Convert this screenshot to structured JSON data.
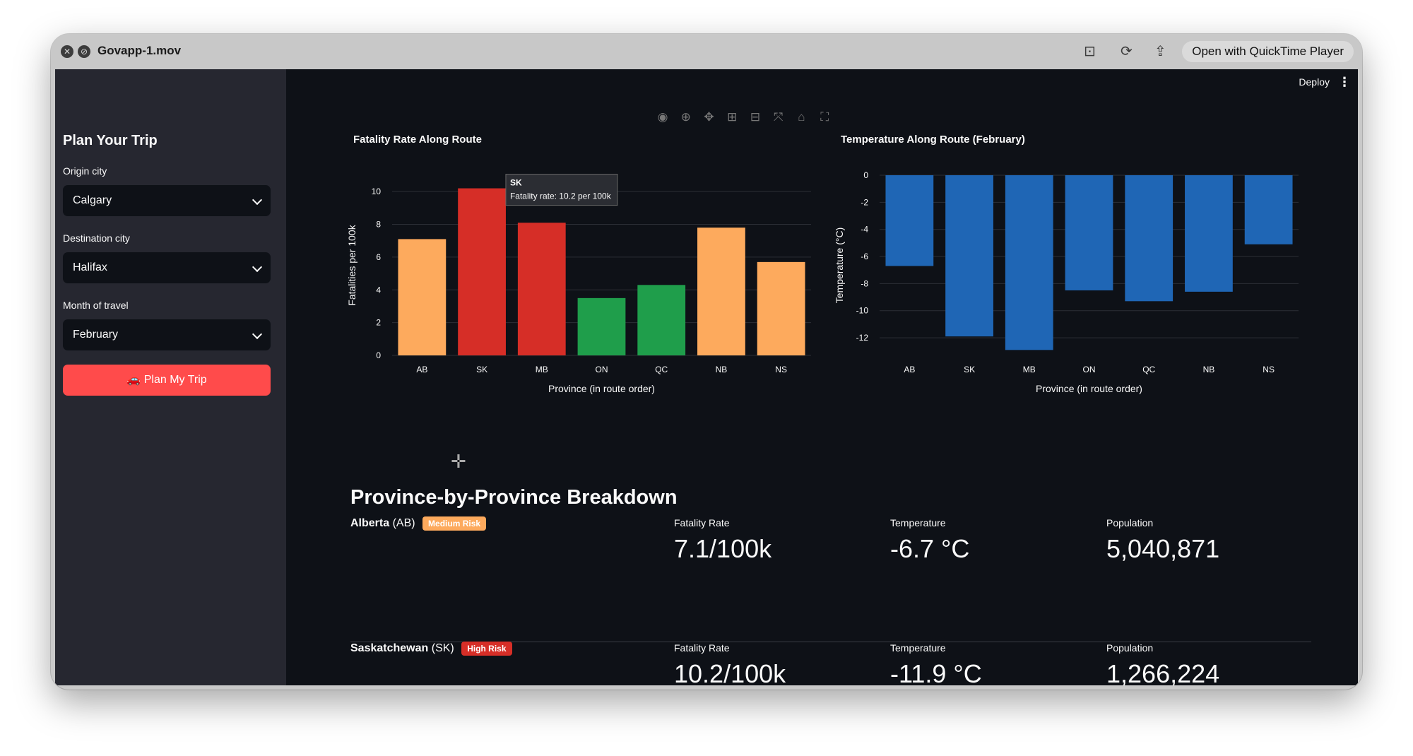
{
  "window": {
    "title": "Govapp-1.mov",
    "open_with": "Open with QuickTime Player"
  },
  "header": {
    "deploy": "Deploy",
    "menu_icon": "kebab-icon"
  },
  "sidebar": {
    "title": "Plan Your Trip",
    "origin": {
      "label": "Origin city",
      "value": "Calgary"
    },
    "destination": {
      "label": "Destination city",
      "value": "Halifax"
    },
    "month": {
      "label": "Month of travel",
      "value": "February"
    },
    "button": "🚗 Plan My Trip"
  },
  "chart_data": [
    {
      "type": "bar",
      "title": "Fatality Rate Along Route",
      "xlabel": "Province (in route order)",
      "ylabel": "Fatalities per 100k",
      "categories": [
        "AB",
        "SK",
        "MB",
        "ON",
        "QC",
        "NB",
        "NS"
      ],
      "values": [
        7.1,
        10.2,
        8.1,
        3.5,
        4.3,
        7.8,
        5.7
      ],
      "colors": [
        "#fdaa5d",
        "#d62e27",
        "#d62e27",
        "#1f9e4b",
        "#1f9e4b",
        "#fdaa5d",
        "#fdaa5d"
      ],
      "ylim": [
        0,
        11
      ],
      "yticks": [
        0,
        2,
        4,
        6,
        8,
        10
      ],
      "grid": true,
      "tooltip": {
        "title": "SK",
        "text": "Fatality rate: 10.2 per 100k"
      }
    },
    {
      "type": "bar",
      "title": "Temperature Along Route (February)",
      "xlabel": "Province (in route order)",
      "ylabel": "Temperature (°C)",
      "categories": [
        "AB",
        "SK",
        "MB",
        "ON",
        "QC",
        "NB",
        "NS"
      ],
      "values": [
        -6.7,
        -11.9,
        -12.9,
        -8.5,
        -9.3,
        -8.6,
        -5.1
      ],
      "color": "#1f66b5",
      "ylim": [
        -13.3,
        0
      ],
      "yticks": [
        0,
        -2,
        -4,
        -6,
        -8,
        -10,
        -12
      ],
      "grid": true
    }
  ],
  "breakdown": {
    "title": "Province-by-Province Breakdown",
    "provinces": [
      {
        "name": "Alberta",
        "code": "(AB)",
        "risk": "Medium Risk",
        "risk_color": "#fdaa5d",
        "fatality_label": "Fatality Rate",
        "fatality": "7.1/100k",
        "temp_label": "Temperature",
        "temp": "-6.7 °C",
        "pop_label": "Population",
        "pop": "5,040,871"
      },
      {
        "name": "Saskatchewan",
        "code": "(SK)",
        "risk": "High Risk",
        "risk_color": "#d62e27",
        "fatality_label": "Fatality Rate",
        "fatality": "10.2/100k",
        "temp_label": "Temperature",
        "temp": "-11.9 °C",
        "pop_label": "Population",
        "pop": "1,266,224"
      }
    ]
  }
}
